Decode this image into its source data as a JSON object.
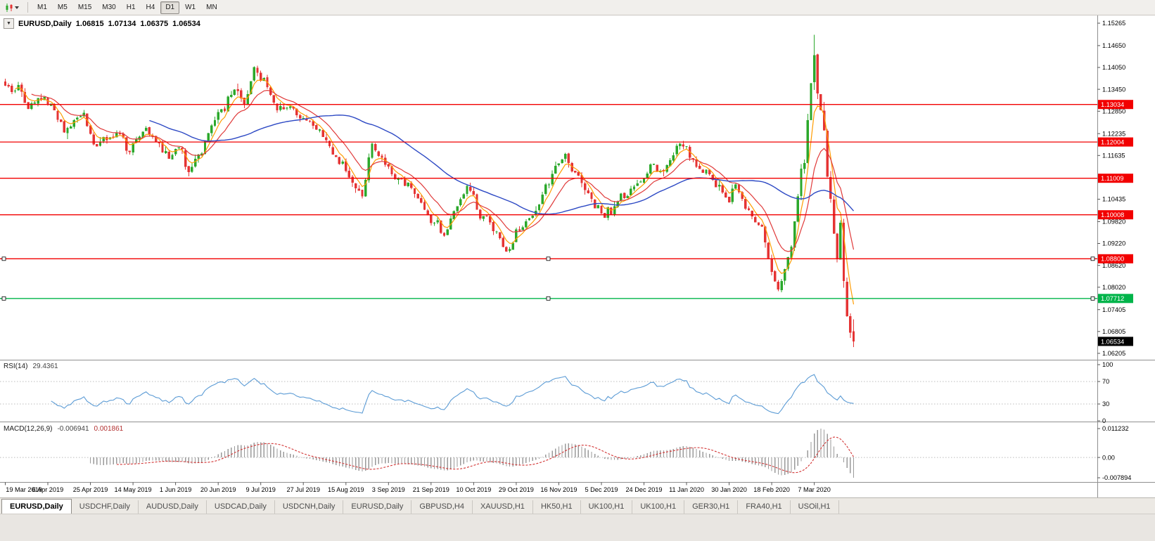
{
  "toolbar": {
    "timeframes": [
      "M1",
      "M5",
      "M15",
      "M30",
      "H1",
      "H4",
      "D1",
      "W1",
      "MN"
    ],
    "active": "D1"
  },
  "chart_header": {
    "symbol": "EURUSD,Daily",
    "open": "1.06815",
    "high": "1.07134",
    "low": "1.06375",
    "close": "1.06534",
    "dropdown_glyph": "▼"
  },
  "chart_data": {
    "type": "candlestick",
    "symbol": "EURUSD",
    "timeframe": "Daily",
    "current_bar": {
      "open": 1.06815,
      "high": 1.07134,
      "low": 1.06375,
      "close": 1.06534
    },
    "price_range": {
      "top": 1.15477,
      "bottom": 1.0603
    },
    "y_axis_ticks": [
      "1.15265",
      "1.14650",
      "1.14050",
      "1.13450",
      "1.12850",
      "1.12235",
      "1.11635",
      "1.10435",
      "1.09820",
      "1.09220",
      "1.08620",
      "1.08020",
      "1.07405",
      "1.06805",
      "1.06205"
    ],
    "horizontal_lines": [
      {
        "price": 1.13034,
        "label": "1.13034",
        "color": "#f20000",
        "selected": false
      },
      {
        "price": 1.12004,
        "label": "1.12004",
        "color": "#f20000",
        "selected": false
      },
      {
        "price": 1.11009,
        "label": "1.11009",
        "color": "#f20000",
        "selected": false
      },
      {
        "price": 1.10008,
        "label": "1.10008",
        "color": "#f20000",
        "selected": false
      },
      {
        "price": 1.088,
        "label": "1.08800",
        "color": "#f20000",
        "selected": true
      },
      {
        "price": 1.07712,
        "label": "1.07712",
        "color": "#00b44a",
        "selected": true
      }
    ],
    "current_price": {
      "value": 1.06534,
      "label": "1.06534"
    },
    "date_labels": [
      "19 Mar 2019",
      "6 Apr 2019",
      "25 Apr 2019",
      "14 May 2019",
      "1 Jun 2019",
      "20 Jun 2019",
      "9 Jul 2019",
      "27 Jul 2019",
      "15 Aug 2019",
      "3 Sep 2019",
      "21 Sep 2019",
      "10 Oct 2019",
      "29 Oct 2019",
      "16 Nov 2019",
      "5 Dec 2019",
      "24 Dec 2019",
      "11 Jan 2020",
      "30 Jan 2020",
      "18 Feb 2020",
      "7 Mar 2020"
    ],
    "candles": {
      "count": 260,
      "spike_index": 247,
      "spike_high": 1.1495,
      "close_anchors": [
        [
          0,
          1.134
        ],
        [
          4,
          1.1355
        ],
        [
          7,
          1.129
        ],
        [
          12,
          1.133
        ],
        [
          18,
          1.124
        ],
        [
          24,
          1.1285
        ],
        [
          27,
          1.118
        ],
        [
          31,
          1.1215
        ],
        [
          34,
          1.123
        ],
        [
          38,
          1.1175
        ],
        [
          42,
          1.1235
        ],
        [
          46,
          1.1205
        ],
        [
          50,
          1.1155
        ],
        [
          53,
          1.1185
        ],
        [
          56,
          1.112
        ],
        [
          60,
          1.1175
        ],
        [
          63,
          1.124
        ],
        [
          67,
          1.13
        ],
        [
          70,
          1.134
        ],
        [
          73,
          1.131
        ],
        [
          76,
          1.1395
        ],
        [
          79,
          1.137
        ],
        [
          83,
          1.1285
        ],
        [
          87,
          1.1305
        ],
        [
          90,
          1.127
        ],
        [
          94,
          1.124
        ],
        [
          97,
          1.1215
        ],
        [
          100,
          1.1175
        ],
        [
          103,
          1.1135
        ],
        [
          106,
          1.1075
        ],
        [
          109,
          1.106
        ],
        [
          112,
          1.119
        ],
        [
          115,
          1.116
        ],
        [
          119,
          1.1105
        ],
        [
          123,
          1.109
        ],
        [
          126,
          1.1035
        ],
        [
          130,
          1.099
        ],
        [
          134,
          1.0955
        ],
        [
          137,
          1.1
        ],
        [
          139,
          1.1055
        ],
        [
          142,
          1.107
        ],
        [
          144,
          1.101
        ],
        [
          148,
          1.0985
        ],
        [
          151,
          1.093
        ],
        [
          153,
          1.0895
        ],
        [
          156,
          1.0945
        ],
        [
          159,
          1.0985
        ],
        [
          162,
          1.101
        ],
        [
          165,
          1.1075
        ],
        [
          168,
          1.1135
        ],
        [
          171,
          1.116
        ],
        [
          174,
          1.111
        ],
        [
          177,
          1.1075
        ],
        [
          180,
          1.103
        ],
        [
          183,
          1.1005
        ],
        [
          186,
          1.1015
        ],
        [
          189,
          1.1055
        ],
        [
          192,
          1.108
        ],
        [
          195,
          1.1105
        ],
        [
          198,
          1.1135
        ],
        [
          201,
          1.1115
        ],
        [
          204,
          1.1175
        ],
        [
          206,
          1.121
        ],
        [
          209,
          1.1165
        ],
        [
          212,
          1.1125
        ],
        [
          215,
          1.1105
        ],
        [
          218,
          1.1085
        ],
        [
          220,
          1.1035
        ],
        [
          223,
          1.1075
        ],
        [
          226,
          1.1025
        ],
        [
          229,
          1.0995
        ],
        [
          231,
          1.096
        ],
        [
          234,
          1.0845
        ],
        [
          236,
          1.079
        ],
        [
          238,
          1.0855
        ],
        [
          240,
          1.0915
        ],
        [
          241,
          1.098
        ],
        [
          243,
          1.113
        ],
        [
          244,
          1.114
        ],
        [
          245,
          1.126
        ],
        [
          246,
          1.136
        ],
        [
          247,
          1.144
        ],
        [
          248,
          1.133
        ],
        [
          249,
          1.129
        ],
        [
          250,
          1.123
        ],
        [
          251,
          1.111
        ],
        [
          252,
          1.105
        ],
        [
          253,
          1.095
        ],
        [
          254,
          1.088
        ],
        [
          255,
          1.098
        ],
        [
          256,
          1.082
        ],
        [
          257,
          1.072
        ],
        [
          258,
          1.068
        ],
        [
          259,
          1.0653
        ]
      ]
    },
    "moving_averages": [
      {
        "name": "fast",
        "period": 5,
        "type": "ema",
        "color": "#ff9c00"
      },
      {
        "name": "medium",
        "period": 13,
        "type": "ema",
        "color": "#e03a3a"
      },
      {
        "name": "slow",
        "period": 45,
        "type": "sma",
        "color": "#2d49c4"
      }
    ],
    "rsi": {
      "name": "RSI(14)",
      "value": "29.4361",
      "period": 14,
      "color": "#5b9bd5",
      "levels": [
        {
          "label": "100",
          "value": 100
        },
        {
          "label": "70",
          "value": 70
        },
        {
          "label": "30",
          "value": 30
        },
        {
          "label": "0",
          "value": 0
        }
      ]
    },
    "macd": {
      "name": "MACD(12,26,9)",
      "main_value": "-0.006941",
      "signal_value": "0.001861",
      "hist_color": "#9a9a9a",
      "signal_color": "#d23333",
      "axis_ticks": [
        {
          "label": "0.011232",
          "value": 0.011232
        },
        {
          "label": "0.00",
          "value": 0
        },
        {
          "label": "-0.007894",
          "value": -0.007894
        }
      ]
    },
    "colors": {
      "bull": "#2ba82b",
      "bear": "#e53434",
      "badge_current": "#000000"
    }
  },
  "tabs": {
    "items": [
      {
        "label": "EURUSD,Daily",
        "active": true
      },
      {
        "label": "USDCHF,Daily",
        "active": false
      },
      {
        "label": "AUDUSD,Daily",
        "active": false
      },
      {
        "label": "USDCAD,Daily",
        "active": false
      },
      {
        "label": "USDCNH,Daily",
        "active": false
      },
      {
        "label": "EURUSD,Daily",
        "active": false
      },
      {
        "label": "GBPUSD,H4",
        "active": false
      },
      {
        "label": "XAUUSD,H1",
        "active": false
      },
      {
        "label": "HK50,H1",
        "active": false
      },
      {
        "label": "UK100,H1",
        "active": false
      },
      {
        "label": "UK100,H1",
        "active": false
      },
      {
        "label": "GER30,H1",
        "active": false
      },
      {
        "label": "FRA40,H1",
        "active": false
      },
      {
        "label": "USOil,H1",
        "active": false
      }
    ]
  }
}
